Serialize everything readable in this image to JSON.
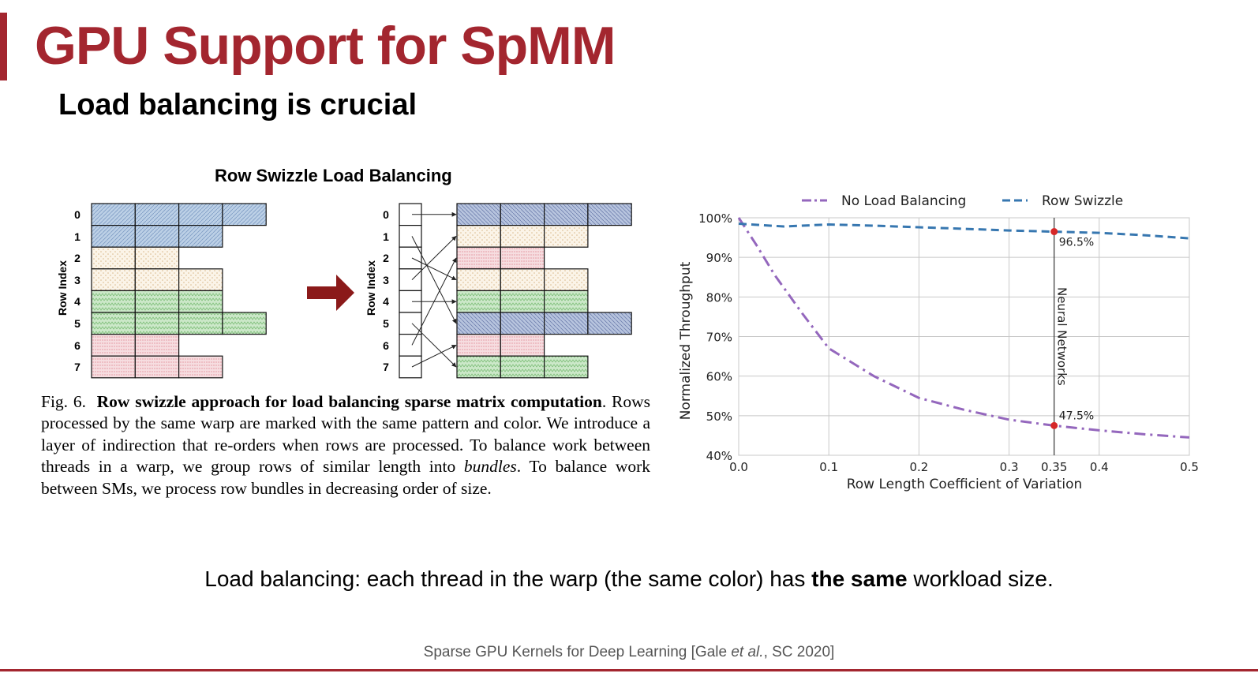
{
  "slide": {
    "title": "GPU Support for SpMM",
    "subtitle": "Load balancing is crucial",
    "accent_color": "#a3262f"
  },
  "diagram": {
    "title": "Row Swizzle Load Balancing",
    "axis_label": "Row Index",
    "row_labels": [
      "0",
      "1",
      "2",
      "3",
      "4",
      "5",
      "6",
      "7"
    ],
    "left_row_lengths": [
      4,
      3,
      2,
      3,
      3,
      4,
      2,
      3
    ],
    "left_row_groups": [
      "blue",
      "blue",
      "tan",
      "tan",
      "green",
      "green",
      "red",
      "red"
    ],
    "right_row_lengths": [
      4,
      3,
      2,
      3,
      3,
      4,
      2,
      3
    ],
    "right_row_groups": [
      "navy",
      "tan",
      "red",
      "tan",
      "green",
      "navy",
      "red",
      "green"
    ],
    "swizzle_order": [
      0,
      3,
      6,
      2,
      4,
      1,
      7,
      5
    ],
    "arrow_icon": "right-arrow-icon",
    "group_colors": {
      "blue": "#bcd0e6",
      "navy": "#b7c4de",
      "tan": "#f6ecdc",
      "green": "#cce8c9",
      "red": "#f2d4d8"
    }
  },
  "caption": {
    "prefix": "Fig. 6.",
    "bold": "Row swizzle approach for load balancing sparse matrix computation",
    "text1": ". Rows processed by the same warp are marked with the same pattern and color. We introduce a layer of indirection that re-orders when rows are processed. To balance work between threads in a warp, we group rows of similar length into ",
    "italic": "bundles",
    "text2": ". To balance work between SMs, we process row bundles in decreasing order of size."
  },
  "chart_data": {
    "type": "line",
    "title": "",
    "xlabel": "Row Length Coefficient of Variation",
    "ylabel": "Normalized Throughput",
    "xlim": [
      0.0,
      0.5
    ],
    "ylim": [
      40,
      100
    ],
    "xticks": [
      "0.0",
      "0.1",
      "0.2",
      "0.3",
      "0.35",
      "0.4",
      "0.5"
    ],
    "xtick_values": [
      0.0,
      0.1,
      0.2,
      0.3,
      0.35,
      0.4,
      0.5
    ],
    "yticks": [
      "40%",
      "50%",
      "60%",
      "70%",
      "80%",
      "90%",
      "100%"
    ],
    "ytick_values": [
      40,
      50,
      60,
      70,
      80,
      90,
      100
    ],
    "grid": true,
    "legend_position": "top",
    "series": [
      {
        "name": "No Load Balancing",
        "color": "#9467bd",
        "dash": "dash-dot",
        "x": [
          0.0,
          0.02,
          0.04,
          0.07,
          0.1,
          0.15,
          0.2,
          0.25,
          0.3,
          0.35,
          0.4,
          0.45,
          0.5
        ],
        "y": [
          100,
          93,
          85.5,
          76,
          67,
          60,
          54.5,
          51.5,
          49,
          47.5,
          46.3,
          45.3,
          44.5
        ]
      },
      {
        "name": "Row Swizzle",
        "color": "#3777b0",
        "dash": "dashed",
        "x": [
          0.0,
          0.05,
          0.1,
          0.15,
          0.2,
          0.25,
          0.3,
          0.35,
          0.4,
          0.45,
          0.5
        ],
        "y": [
          98.5,
          97.8,
          98.3,
          98,
          97.6,
          97.2,
          96.8,
          96.5,
          96.2,
          95.6,
          94.8
        ]
      }
    ],
    "annotations": [
      {
        "text": "96.5%",
        "x": 0.35,
        "y": 96.5
      },
      {
        "text": "47.5%",
        "x": 0.35,
        "y": 47.5
      },
      {
        "text": "Neural Networks",
        "x": 0.35,
        "orientation": "vertical"
      }
    ],
    "marker_color": "#d62728"
  },
  "takeaway": {
    "prefix": "Load balancing: each thread in the warp (the same color) has ",
    "bold": "the same",
    "suffix": " workload size."
  },
  "citation": {
    "prefix": "Sparse GPU Kernels for Deep Learning [Gale ",
    "italic": "et al.",
    "suffix": ", SC 2020]"
  }
}
